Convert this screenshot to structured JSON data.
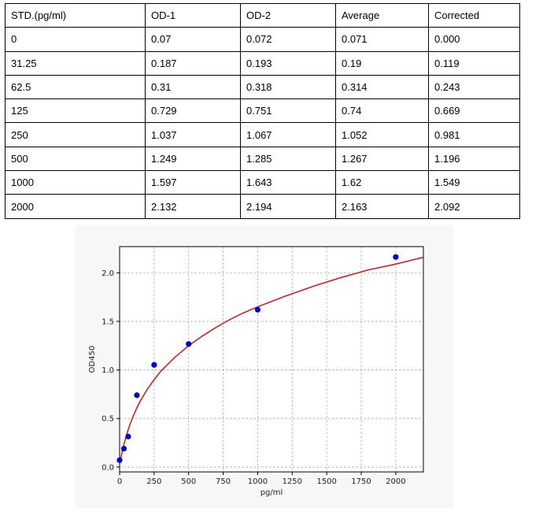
{
  "table": {
    "headers": [
      "STD.(pg/ml)",
      "OD-1",
      "OD-2",
      "Average",
      "Corrected"
    ],
    "rows": [
      [
        "0",
        "0.07",
        "0.072",
        "0.071",
        "0.000"
      ],
      [
        "31.25",
        "0.187",
        "0.193",
        "0.19",
        "0.119"
      ],
      [
        "62.5",
        "0.31",
        "0.318",
        "0.314",
        "0.243"
      ],
      [
        "125",
        "0.729",
        "0.751",
        "0.74",
        "0.669"
      ],
      [
        "250",
        "1.037",
        "1.067",
        "1.052",
        "0.981"
      ],
      [
        "500",
        "1.249",
        "1.285",
        "1.267",
        "1.196"
      ],
      [
        "1000",
        "1.597",
        "1.643",
        "1.62",
        "1.549"
      ],
      [
        "2000",
        "2.132",
        "2.194",
        "2.163",
        "2.092"
      ]
    ]
  },
  "chart_data": {
    "type": "scatter",
    "title": "",
    "xlabel": "pg/ml",
    "ylabel": "OD450",
    "xlim": [
      0,
      2200
    ],
    "ylim": [
      -0.05,
      2.27
    ],
    "xticks": [
      0,
      250,
      500,
      750,
      1000,
      1250,
      1500,
      1750,
      2000
    ],
    "xtick_labels": [
      "0",
      "250",
      "500",
      "750",
      "1000",
      "1250",
      "1500",
      "1750",
      "2000"
    ],
    "yticks": [
      0.0,
      0.5,
      1.0,
      1.5,
      2.0
    ],
    "ytick_labels": [
      "0.0",
      "0.5",
      "1.0",
      "1.5",
      "2.0"
    ],
    "grid": true,
    "series": [
      {
        "type": "scatter",
        "color": "#0000cc",
        "x": [
          0,
          31.25,
          62.5,
          125,
          250,
          500,
          1000,
          2000
        ],
        "y": [
          0.071,
          0.19,
          0.314,
          0.74,
          1.052,
          1.267,
          1.62,
          2.163
        ]
      },
      {
        "type": "line",
        "color": "#cc2222",
        "x": [
          0,
          25,
          50,
          75,
          100,
          125,
          150,
          200,
          250,
          300,
          400,
          500,
          600,
          700,
          800,
          900,
          1000,
          1200,
          1400,
          1600,
          1800,
          2000,
          2200
        ],
        "y": [
          0.03,
          0.2,
          0.33,
          0.44,
          0.53,
          0.61,
          0.68,
          0.8,
          0.9,
          0.99,
          1.13,
          1.25,
          1.35,
          1.44,
          1.52,
          1.59,
          1.65,
          1.76,
          1.86,
          1.95,
          2.03,
          2.09,
          2.16
        ]
      }
    ]
  }
}
